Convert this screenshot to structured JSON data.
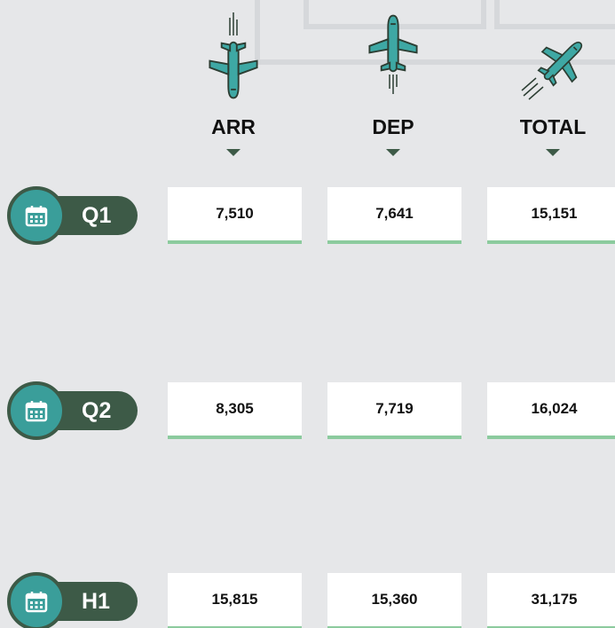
{
  "table": {
    "columns": [
      "ARR",
      "DEP",
      "TOTAL"
    ],
    "rows": [
      {
        "label": "Q1",
        "values": [
          "7,510",
          "7,641",
          "15,151"
        ]
      },
      {
        "label": "Q2",
        "values": [
          "8,305",
          "7,719",
          "16,024"
        ]
      },
      {
        "label": "H1",
        "values": [
          "15,815",
          "15,360",
          "31,175"
        ]
      }
    ]
  }
}
